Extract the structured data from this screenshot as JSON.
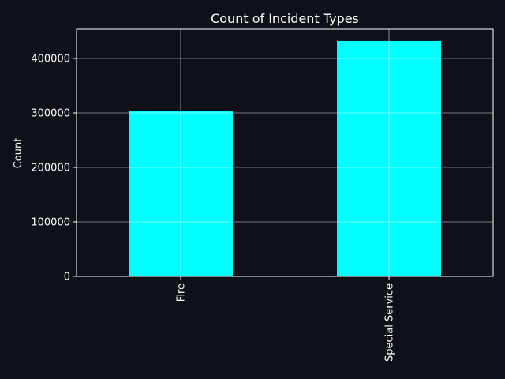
{
  "colors": {
    "background": "#0e1117",
    "bar": "#00ffff",
    "axis": "#ffffff",
    "grid": "#ffffff",
    "text": "#ffffff"
  },
  "chart_data": {
    "type": "bar",
    "title": "Count of Incident Types",
    "xlabel": "",
    "ylabel": "Count",
    "categories": [
      "Fire",
      "Special Service"
    ],
    "values": [
      303000,
      432000
    ],
    "ylim": [
      0,
      453600
    ],
    "yticks": [
      0,
      100000,
      200000,
      300000,
      400000
    ],
    "ytick_labels": [
      "0",
      "100000",
      "200000",
      "300000",
      "400000"
    ],
    "grid": true,
    "x_tick_rotation": "vertical",
    "legend": false
  }
}
